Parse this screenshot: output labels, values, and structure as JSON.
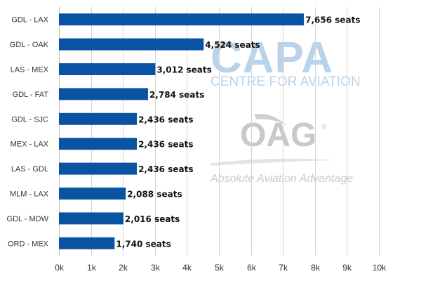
{
  "chart_data": {
    "type": "bar",
    "orientation": "horizontal",
    "categories": [
      "GDL - LAX",
      "GDL - OAK",
      "LAS - MEX",
      "GDL - FAT",
      "GDL - SJC",
      "MEX - LAX",
      "LAS - GDL",
      "MLM - LAX",
      "GDL - MDW",
      "ORD - MEX"
    ],
    "values": [
      7656,
      4524,
      3012,
      2784,
      2436,
      2436,
      2436,
      2088,
      2016,
      1740
    ],
    "data_labels": [
      "7,656 seats",
      "4,524 seats",
      "3,012 seats",
      "2,784 seats",
      "2,436 seats",
      "2,436 seats",
      "2,436 seats",
      "2,088 seats",
      "2,016 seats",
      "1,740 seats"
    ],
    "x_ticks": [
      0,
      1000,
      2000,
      3000,
      4000,
      5000,
      6000,
      7000,
      8000,
      9000,
      10000
    ],
    "x_tick_labels": [
      "0k",
      "1k",
      "2k",
      "3k",
      "4k",
      "5k",
      "6k",
      "7k",
      "8k",
      "9k",
      "10k"
    ],
    "xlim": [
      0,
      10000
    ],
    "grid": "vertical",
    "legend": "none",
    "bar_color": "#0a53a3",
    "grid_color": "#d4d4d4"
  },
  "watermarks": {
    "capa": {
      "logo": "CAPA",
      "subtitle": "CENTRE FOR AVIATION",
      "color": "#b9d3ea"
    },
    "oag": {
      "logo": "OAG",
      "registered": "®",
      "tagline": "Absolute Aviation Advantage",
      "color": "#c9c9c9"
    }
  }
}
